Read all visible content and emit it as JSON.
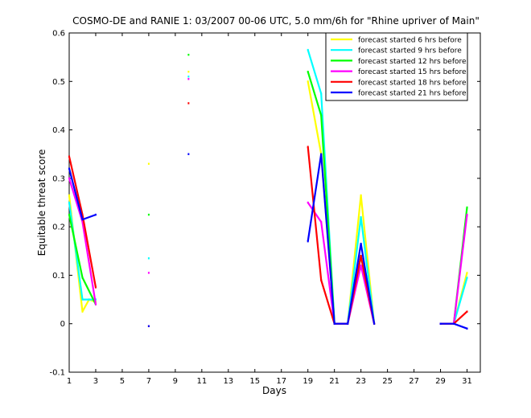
{
  "chart_data": {
    "type": "line",
    "title": "COSMO-DE and RANIE 1: 03/2007 00-06 UTC, 5.0 mm/6h for \"Rhine upriver of Main\"",
    "xlabel": "Days",
    "ylabel": "Equitable threat score",
    "xlim": [
      1,
      32
    ],
    "ylim": [
      -0.1,
      0.6
    ],
    "xticks": [
      1,
      3,
      5,
      7,
      9,
      11,
      13,
      15,
      17,
      19,
      21,
      23,
      25,
      27,
      29,
      31
    ],
    "yticks": [
      -0.1,
      0,
      0.1,
      0.2,
      0.3,
      0.4,
      0.5,
      0.6
    ],
    "grid": false,
    "legend_position": "top-right",
    "series": [
      {
        "name": "forecast started 6 hrs before",
        "color": "#ffff00",
        "x": [
          1,
          2,
          2.5,
          3,
          7,
          10,
          19,
          20,
          21,
          22,
          23,
          24,
          29,
          30,
          31
        ],
        "y": [
          0.265,
          0.025,
          0.05,
          0.045,
          0.33,
          0.52,
          0.5,
          0.35,
          0.0,
          0.0,
          0.265,
          0.0,
          0.0,
          0.0,
          0.105
        ]
      },
      {
        "name": "forecast started 9 hrs before",
        "color": "#00ffff",
        "x": [
          1,
          2,
          2.5,
          3,
          7,
          10,
          19,
          20,
          21,
          22,
          23,
          24,
          29,
          30,
          31
        ],
        "y": [
          0.25,
          0.05,
          0.05,
          0.05,
          0.135,
          0.51,
          0.565,
          0.475,
          0.0,
          0.0,
          0.22,
          0.0,
          0.0,
          0.0,
          0.095
        ]
      },
      {
        "name": "forecast started 12 hrs before",
        "color": "#00ff00",
        "x": [
          1,
          2,
          3,
          7,
          10,
          19,
          20,
          21,
          22,
          23,
          24,
          29,
          30,
          31
        ],
        "y": [
          0.225,
          0.095,
          0.04,
          0.225,
          0.555,
          0.52,
          0.43,
          0.0,
          0.0,
          0.14,
          0.0,
          0.0,
          0.0,
          0.24
        ]
      },
      {
        "name": "forecast started 15 hrs before",
        "color": "#ff00ff",
        "x": [
          1,
          2,
          3,
          7,
          10,
          19,
          20,
          21,
          22,
          23,
          24,
          29,
          30,
          31
        ],
        "y": [
          0.3,
          0.21,
          0.04,
          0.105,
          0.505,
          0.25,
          0.21,
          0.0,
          0.0,
          0.12,
          0.0,
          0.0,
          0.0,
          0.225
        ]
      },
      {
        "name": "forecast started 18 hrs before",
        "color": "#ff0000",
        "x": [
          1,
          2,
          3,
          7,
          10,
          19,
          20,
          21,
          22,
          23,
          24,
          29,
          30,
          31
        ],
        "y": [
          0.345,
          0.225,
          0.075,
          -0.005,
          0.455,
          0.365,
          0.09,
          0.0,
          0.0,
          0.14,
          0.0,
          0.0,
          0.0,
          0.025
        ]
      },
      {
        "name": "forecast started 21 hrs before",
        "color": "#0000ff",
        "x": [
          1,
          2,
          3,
          7,
          10,
          19,
          20,
          21,
          22,
          23,
          24,
          29,
          30,
          31
        ],
        "y": [
          0.32,
          0.215,
          0.225,
          -0.005,
          0.35,
          0.17,
          0.35,
          0.0,
          0.0,
          0.165,
          0.0,
          0.0,
          0.0,
          -0.01
        ]
      }
    ]
  }
}
